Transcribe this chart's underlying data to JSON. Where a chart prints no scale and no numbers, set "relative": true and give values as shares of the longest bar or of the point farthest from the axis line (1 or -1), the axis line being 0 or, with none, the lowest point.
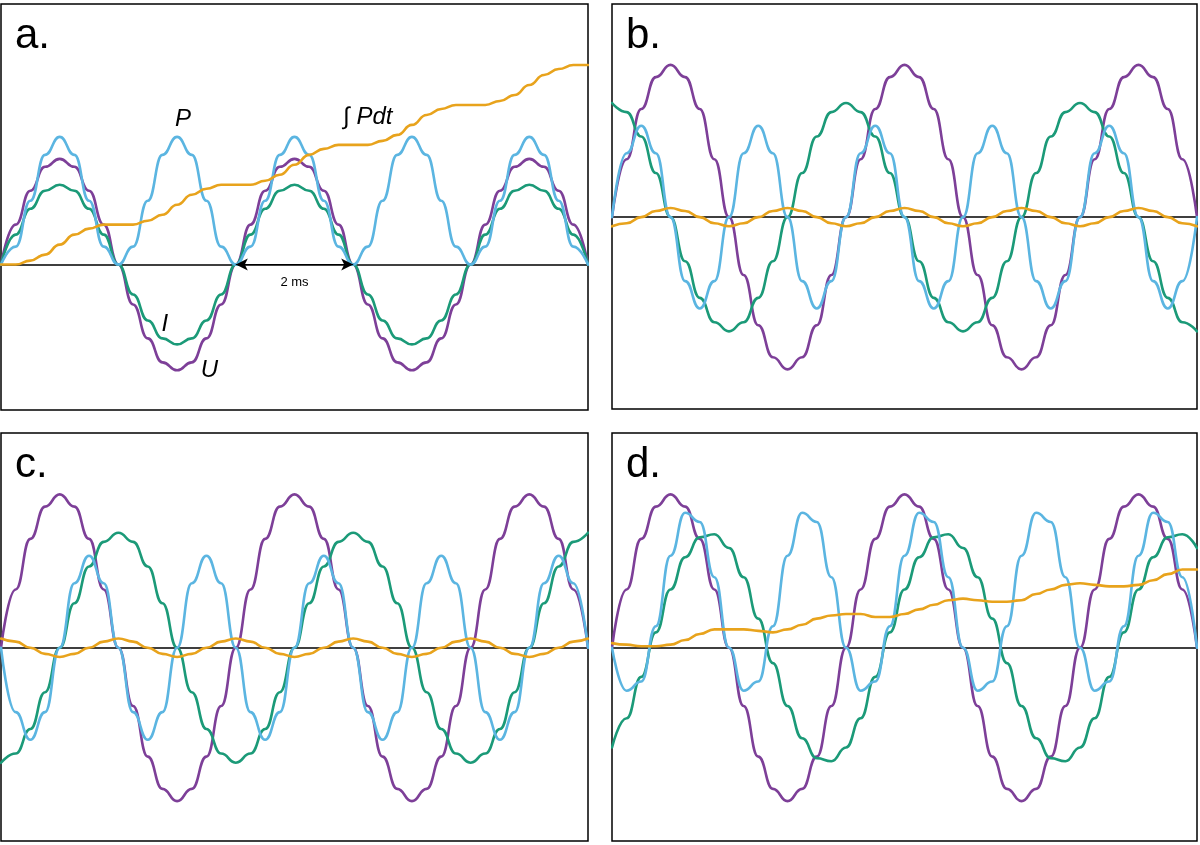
{
  "chart_data": [
    {
      "type": "line",
      "title": "a.",
      "relative": true,
      "tick_labels": false,
      "line_style": "solid",
      "marker": "none",
      "categories": [
        null,
        null,
        null,
        null,
        null,
        null,
        null,
        null,
        null,
        null,
        null,
        null,
        null,
        null,
        null,
        null,
        null,
        null,
        null,
        null,
        null,
        null,
        null,
        null,
        null,
        null,
        null,
        null,
        null,
        null,
        null,
        null,
        null,
        null,
        null,
        null,
        null,
        null,
        null,
        null,
        null
      ],
      "series": [
        {
          "name": "U",
          "color": "#7d3f98",
          "values": [
            0,
            0.2,
            0.37,
            0.49,
            0.53,
            0.49,
            0.37,
            0.2,
            0,
            -0.2,
            -0.37,
            -0.49,
            -0.53,
            -0.49,
            -0.37,
            -0.2,
            0,
            0.2,
            0.37,
            0.49,
            0.53,
            0.49,
            0.37,
            0.2,
            0,
            -0.2,
            -0.37,
            -0.49,
            -0.53,
            -0.49,
            -0.37,
            -0.2,
            0,
            0.2,
            0.37,
            0.49,
            0.53,
            0.49,
            0.37,
            0.2,
            0
          ]
        },
        {
          "name": "I",
          "color": "#1b9a78",
          "values": [
            0,
            0.15,
            0.28,
            0.37,
            0.4,
            0.37,
            0.28,
            0.15,
            0,
            -0.15,
            -0.28,
            -0.37,
            -0.4,
            -0.37,
            -0.28,
            -0.15,
            0,
            0.15,
            0.28,
            0.37,
            0.4,
            0.37,
            0.28,
            0.15,
            0,
            -0.15,
            -0.28,
            -0.37,
            -0.4,
            -0.37,
            -0.28,
            -0.15,
            0,
            0.15,
            0.28,
            0.37,
            0.4,
            0.37,
            0.28,
            0.15,
            0
          ]
        },
        {
          "name": "P",
          "color": "#5bb5e1",
          "values": [
            0,
            0.09,
            0.32,
            0.55,
            0.64,
            0.55,
            0.32,
            0.09,
            0,
            0.09,
            0.32,
            0.55,
            0.64,
            0.55,
            0.32,
            0.09,
            0,
            0.09,
            0.32,
            0.55,
            0.64,
            0.55,
            0.32,
            0.09,
            0,
            0.09,
            0.32,
            0.55,
            0.64,
            0.55,
            0.32,
            0.09,
            0,
            0.09,
            0.32,
            0.55,
            0.64,
            0.55,
            0.32,
            0.09,
            0
          ]
        },
        {
          "name": "∫ Pdt",
          "color": "#e8a31c",
          "values": [
            0,
            0,
            0.02,
            0.05,
            0.1,
            0.15,
            0.18,
            0.2,
            0.2,
            0.2,
            0.22,
            0.25,
            0.3,
            0.35,
            0.38,
            0.4,
            0.4,
            0.4,
            0.42,
            0.45,
            0.5,
            0.55,
            0.58,
            0.6,
            0.6,
            0.6,
            0.62,
            0.65,
            0.7,
            0.75,
            0.78,
            0.8,
            0.8,
            0.8,
            0.82,
            0.85,
            0.9,
            0.95,
            0.98,
            1,
            1
          ]
        }
      ],
      "annotations": [
        "2 ms"
      ]
    },
    {
      "type": "line",
      "title": "b.",
      "relative": true,
      "tick_labels": false,
      "line_style": "solid",
      "marker": "none",
      "categories": [
        null,
        null,
        null,
        null,
        null,
        null,
        null,
        null,
        null,
        null,
        null,
        null,
        null,
        null,
        null,
        null,
        null,
        null,
        null,
        null,
        null,
        null,
        null,
        null,
        null,
        null,
        null,
        null,
        null,
        null,
        null,
        null,
        null,
        null,
        null,
        null,
        null,
        null,
        null,
        null,
        null
      ],
      "series": [
        {
          "color": "#7d3f98",
          "values": [
            0,
            0.38,
            0.71,
            0.92,
            1,
            0.92,
            0.71,
            0.38,
            0,
            -0.38,
            -0.71,
            -0.92,
            -1,
            -0.92,
            -0.71,
            -0.38,
            0,
            0.38,
            0.71,
            0.92,
            1,
            0.92,
            0.71,
            0.38,
            0,
            -0.38,
            -0.71,
            -0.92,
            -1,
            -0.92,
            -0.71,
            -0.38,
            0,
            0.38,
            0.71,
            0.92,
            1,
            0.92,
            0.71,
            0.38,
            0
          ]
        },
        {
          "color": "#1b9a78",
          "values": [
            0.75,
            0.69,
            0.53,
            0.29,
            0,
            -0.29,
            -0.53,
            -0.69,
            -0.75,
            -0.69,
            -0.53,
            -0.29,
            0,
            0.29,
            0.53,
            0.69,
            0.75,
            0.69,
            0.53,
            0.29,
            0,
            -0.29,
            -0.53,
            -0.69,
            -0.75,
            -0.69,
            -0.53,
            -0.29,
            0,
            0.29,
            0.53,
            0.69,
            0.75,
            0.69,
            0.53,
            0.29,
            0,
            -0.29,
            -0.53,
            -0.69,
            -0.75
          ]
        },
        {
          "color": "#5bb5e1",
          "values": [
            0,
            0.42,
            0.6,
            0.42,
            0,
            -0.42,
            -0.6,
            -0.42,
            0,
            0.42,
            0.6,
            0.42,
            0,
            -0.42,
            -0.6,
            -0.42,
            0,
            0.42,
            0.6,
            0.42,
            0,
            -0.42,
            -0.6,
            -0.42,
            0,
            0.42,
            0.6,
            0.42,
            0,
            -0.42,
            -0.6,
            -0.42,
            0,
            0.42,
            0.6,
            0.42,
            0,
            -0.42,
            -0.6,
            -0.42,
            0
          ]
        },
        {
          "color": "#e8a31c",
          "values": [
            -0.06,
            -0.04,
            0,
            0.04,
            0.06,
            0.04,
            0,
            -0.04,
            -0.06,
            -0.04,
            0,
            0.04,
            0.06,
            0.04,
            0,
            -0.04,
            -0.06,
            -0.04,
            0,
            0.04,
            0.06,
            0.04,
            0,
            -0.04,
            -0.06,
            -0.04,
            0,
            0.04,
            0.06,
            0.04,
            0,
            -0.04,
            -0.06,
            -0.04,
            0,
            0.04,
            0.06,
            0.04,
            0,
            -0.04,
            -0.06
          ]
        }
      ]
    },
    {
      "type": "line",
      "title": "c.",
      "relative": true,
      "tick_labels": false,
      "line_style": "solid",
      "marker": "none",
      "categories": [
        null,
        null,
        null,
        null,
        null,
        null,
        null,
        null,
        null,
        null,
        null,
        null,
        null,
        null,
        null,
        null,
        null,
        null,
        null,
        null,
        null,
        null,
        null,
        null,
        null,
        null,
        null,
        null,
        null,
        null,
        null,
        null,
        null,
        null,
        null,
        null,
        null,
        null,
        null,
        null,
        null
      ],
      "series": [
        {
          "color": "#7d3f98",
          "values": [
            0,
            0.38,
            0.71,
            0.92,
            1,
            0.92,
            0.71,
            0.38,
            0,
            -0.38,
            -0.71,
            -0.92,
            -1,
            -0.92,
            -0.71,
            -0.38,
            0,
            0.38,
            0.71,
            0.92,
            1,
            0.92,
            0.71,
            0.38,
            0,
            -0.38,
            -0.71,
            -0.92,
            -1,
            -0.92,
            -0.71,
            -0.38,
            0,
            0.38,
            0.71,
            0.92,
            1,
            0.92,
            0.71,
            0.38,
            0
          ]
        },
        {
          "color": "#1b9a78",
          "values": [
            -0.75,
            -0.69,
            -0.53,
            -0.29,
            0,
            0.29,
            0.53,
            0.69,
            0.75,
            0.69,
            0.53,
            0.29,
            0,
            -0.29,
            -0.53,
            -0.69,
            -0.75,
            -0.69,
            -0.53,
            -0.29,
            0,
            0.29,
            0.53,
            0.69,
            0.75,
            0.69,
            0.53,
            0.29,
            0,
            -0.29,
            -0.53,
            -0.69,
            -0.75,
            -0.69,
            -0.53,
            -0.29,
            0,
            0.29,
            0.53,
            0.69,
            0.75
          ]
        },
        {
          "color": "#5bb5e1",
          "values": [
            0,
            -0.42,
            -0.6,
            -0.42,
            0,
            0.42,
            0.6,
            0.42,
            0,
            -0.42,
            -0.6,
            -0.42,
            0,
            0.42,
            0.6,
            0.42,
            0,
            -0.42,
            -0.6,
            -0.42,
            0,
            0.42,
            0.6,
            0.42,
            0,
            -0.42,
            -0.6,
            -0.42,
            0,
            0.42,
            0.6,
            0.42,
            0,
            -0.42,
            -0.6,
            -0.42,
            0,
            0.42,
            0.6,
            0.42,
            0
          ]
        },
        {
          "color": "#e8a31c",
          "values": [
            0.06,
            0.04,
            0,
            -0.04,
            -0.06,
            -0.04,
            0,
            0.04,
            0.06,
            0.04,
            0,
            -0.04,
            -0.06,
            -0.04,
            0,
            0.04,
            0.06,
            0.04,
            0,
            -0.04,
            -0.06,
            -0.04,
            0,
            0.04,
            0.06,
            0.04,
            0,
            -0.04,
            -0.06,
            -0.04,
            0,
            0.04,
            0.06,
            0.04,
            0,
            -0.04,
            -0.06,
            -0.04,
            0,
            0.04,
            0.06
          ]
        }
      ]
    },
    {
      "type": "line",
      "title": "d.",
      "relative": true,
      "tick_labels": false,
      "line_style": "solid",
      "marker": "none",
      "categories": [
        null,
        null,
        null,
        null,
        null,
        null,
        null,
        null,
        null,
        null,
        null,
        null,
        null,
        null,
        null,
        null,
        null,
        null,
        null,
        null,
        null,
        null,
        null,
        null,
        null,
        null,
        null,
        null,
        null,
        null,
        null,
        null,
        null,
        null,
        null,
        null,
        null,
        null,
        null,
        null,
        null
      ],
      "series": [
        {
          "color": "#7d3f98",
          "values": [
            0,
            0.38,
            0.71,
            0.92,
            1,
            0.92,
            0.71,
            0.38,
            0,
            -0.38,
            -0.71,
            -0.92,
            -1,
            -0.92,
            -0.71,
            -0.38,
            0,
            0.38,
            0.71,
            0.92,
            1,
            0.92,
            0.71,
            0.38,
            0,
            -0.38,
            -0.71,
            -0.92,
            -1,
            -0.92,
            -0.71,
            -0.38,
            0,
            0.38,
            0.71,
            0.92,
            1,
            0.92,
            0.71,
            0.38,
            0
          ]
        },
        {
          "color": "#1b9a78",
          "values": [
            -0.65,
            -0.46,
            -0.19,
            0.1,
            0.38,
            0.59,
            0.72,
            0.74,
            0.65,
            0.46,
            0.19,
            -0.1,
            -0.38,
            -0.59,
            -0.72,
            -0.74,
            -0.65,
            -0.46,
            -0.19,
            0.1,
            0.38,
            0.59,
            0.72,
            0.74,
            0.65,
            0.46,
            0.19,
            -0.1,
            -0.38,
            -0.59,
            -0.72,
            -0.74,
            -0.65,
            -0.46,
            -0.19,
            0.1,
            0.38,
            0.59,
            0.72,
            0.74,
            0.65
          ]
        },
        {
          "color": "#5bb5e1",
          "values": [
            0,
            -0.28,
            -0.22,
            0.14,
            0.6,
            0.88,
            0.82,
            0.46,
            0,
            -0.28,
            -0.22,
            0.14,
            0.6,
            0.88,
            0.82,
            0.46,
            0,
            -0.28,
            -0.22,
            0.14,
            0.6,
            0.88,
            0.82,
            0.46,
            0,
            -0.28,
            -0.22,
            0.14,
            0.6,
            0.88,
            0.82,
            0.46,
            0,
            -0.28,
            -0.22,
            0.14,
            0.6,
            0.88,
            0.82,
            0.46,
            0
          ]
        },
        {
          "color": "#e8a31c",
          "values": [
            0.03,
            0.02,
            0.01,
            0.01,
            0.02,
            0.05,
            0.09,
            0.12,
            0.12,
            0.12,
            0.11,
            0.1,
            0.12,
            0.15,
            0.19,
            0.21,
            0.22,
            0.22,
            0.2,
            0.2,
            0.22,
            0.25,
            0.28,
            0.31,
            0.32,
            0.31,
            0.3,
            0.3,
            0.31,
            0.35,
            0.38,
            0.41,
            0.42,
            0.41,
            0.4,
            0.4,
            0.41,
            0.44,
            0.48,
            0.51,
            0.51
          ]
        }
      ]
    }
  ]
}
